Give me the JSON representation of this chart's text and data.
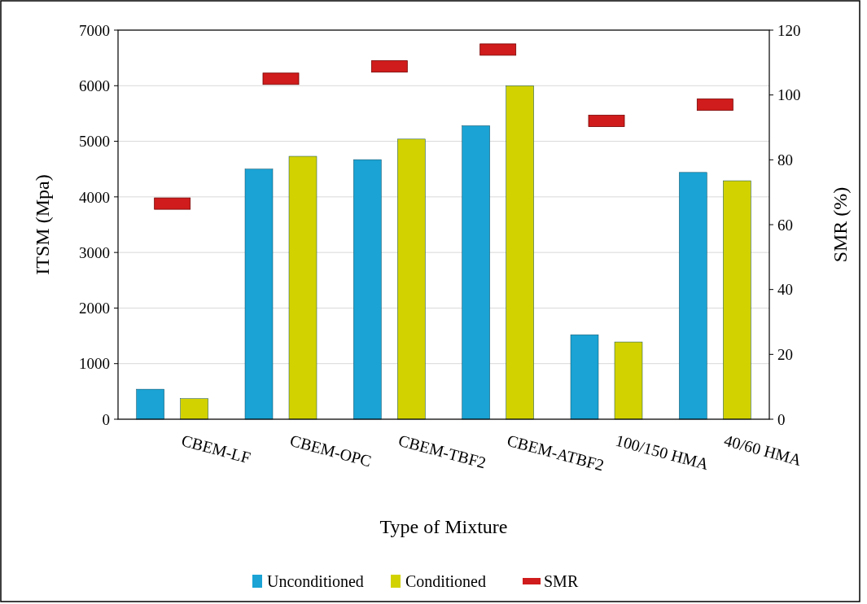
{
  "chart_data": {
    "type": "bar",
    "xlabel": "Type of Mixture",
    "ylabel": "ITSM (Mpa)",
    "y2label": "SMR (%)",
    "categories": [
      "CBEM-LF",
      "CBEM-OPC",
      "CBEM-TBF2",
      "CBEM-ATBF2",
      "100/150 HMA",
      "40/60 HMA"
    ],
    "series": [
      {
        "name": "Unconditioned",
        "color": "#1aa3d4",
        "values": [
          540,
          4500,
          4670,
          5280,
          1520,
          4440
        ]
      },
      {
        "name": "Conditioned",
        "color": "#d2d200",
        "values": [
          370,
          4730,
          5040,
          6000,
          1390,
          4290
        ]
      },
      {
        "name": "SMR",
        "type": "scatter",
        "axis": "y2",
        "marker": "square",
        "color": "#d01c1c",
        "values": [
          66.5,
          105,
          108.8,
          114,
          92,
          97
        ]
      }
    ],
    "ylim": [
      0,
      7000
    ],
    "yticks": [
      0,
      1000,
      2000,
      3000,
      4000,
      5000,
      6000,
      7000
    ],
    "y2lim": [
      0,
      120
    ],
    "y2ticks": [
      0,
      20,
      40,
      60,
      80,
      100,
      120
    ],
    "grid": "y",
    "legend": "bottom"
  }
}
